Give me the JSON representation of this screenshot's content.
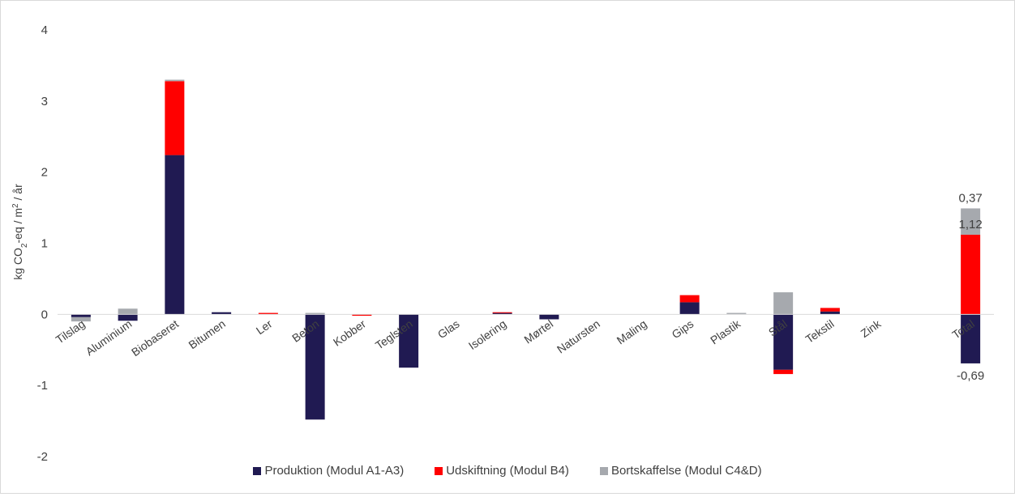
{
  "chart_data": {
    "type": "bar",
    "stacked": true,
    "title": "",
    "xlabel": "",
    "ylabel": "kg CO₂-eq / m² / år",
    "ylabel_parts": [
      "kg CO",
      "2",
      "-eq / m",
      "2",
      " / år"
    ],
    "ylim": [
      -2,
      4
    ],
    "yticks": [
      -2,
      -1,
      0,
      1,
      2,
      3,
      4
    ],
    "grid": false,
    "legend_position": "bottom",
    "categories": [
      "Tilslag",
      "Aluminium",
      "Biobaseret",
      "Bitumen",
      "Ler",
      "Beton",
      "Kobber",
      "Teglsten",
      "Glas",
      "Isolering",
      "Mørtel",
      "Natursten",
      "Maling",
      "Gips",
      "Plastik",
      "Stål",
      "Tekstil",
      "Zink",
      "",
      "Total"
    ],
    "series": [
      {
        "name": "Produktion (Modul A1-A3)",
        "color": "#201a52",
        "values": [
          -0.04,
          -0.09,
          2.24,
          0.03,
          0.0,
          -1.48,
          0.0,
          -0.75,
          0.0,
          0.02,
          -0.07,
          0.0,
          0.0,
          0.17,
          0.0,
          -0.78,
          0.04,
          0.0,
          null,
          -0.69
        ]
      },
      {
        "name": "Udskiftning (Modul B4)",
        "color": "#ff0000",
        "values": [
          0.0,
          0.0,
          1.04,
          0.0,
          0.02,
          0.0,
          -0.02,
          0.0,
          0.0,
          0.01,
          0.0,
          0.0,
          0.0,
          0.1,
          0.0,
          -0.06,
          0.05,
          0.0,
          null,
          1.12
        ]
      },
      {
        "name": "Bortskaffelse (Modul C4&D)",
        "color": "#a6a9ae",
        "values": [
          -0.06,
          0.08,
          0.02,
          0.0,
          0.0,
          0.02,
          0.0,
          0.0,
          0.0,
          0.0,
          0.0,
          0.0,
          0.0,
          0.0,
          0.02,
          0.31,
          0.0,
          0.0,
          null,
          0.37
        ]
      }
    ],
    "data_labels": [
      {
        "category": "Total",
        "series": "Produktion (Modul A1-A3)",
        "text": "-0,69"
      },
      {
        "category": "Total",
        "series": "Udskiftning (Modul B4)",
        "text": "1,12"
      },
      {
        "category": "Total",
        "series": "Bortskaffelse (Modul C4&D)",
        "text": "0,37"
      }
    ]
  }
}
